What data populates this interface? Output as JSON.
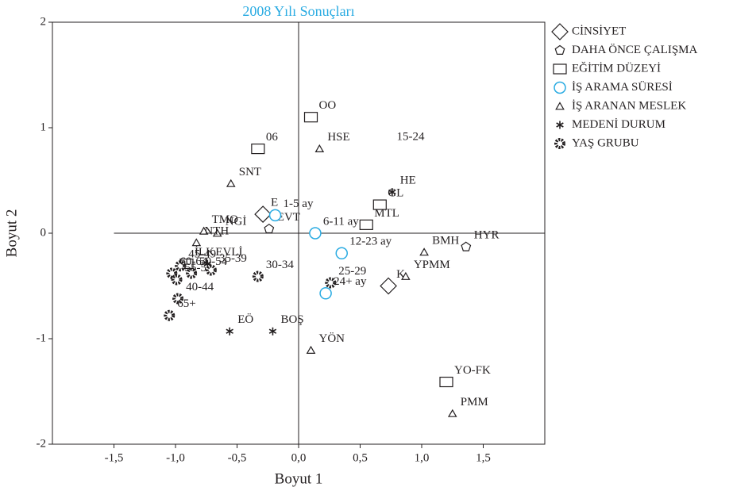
{
  "chart_data": {
    "type": "scatter",
    "title": "2008 Yılı Sonuçları",
    "xlabel": "Boyut 1",
    "ylabel": "Boyut 2",
    "xlim": [
      -2,
      2
    ],
    "ylim": [
      -2,
      2
    ],
    "xticks": [
      {
        "value": -1.5,
        "label": "-1,5"
      },
      {
        "value": -1.0,
        "label": "-1,0"
      },
      {
        "value": -0.5,
        "label": "-0,5"
      },
      {
        "value": 0.0,
        "label": "0,0"
      },
      {
        "value": 0.5,
        "label": "0,5"
      },
      {
        "value": 1.0,
        "label": "1,0"
      },
      {
        "value": 1.5,
        "label": "1,5"
      }
    ],
    "yticks": [
      2,
      1,
      0,
      -1,
      -2
    ],
    "series": [
      {
        "name": "CİNSİYET",
        "marker": "diamond",
        "color": "#231f20",
        "x": [
          -0.29,
          0.73
        ],
        "y": [
          0.18,
          -0.5
        ],
        "labels": [
          "E",
          "K"
        ]
      },
      {
        "name": "DAHA ÖNCE ÇALIŞMA",
        "marker": "pentagon",
        "color": "#231f20",
        "x": [
          -0.24,
          1.36
        ],
        "y": [
          0.04,
          -0.13
        ],
        "labels": [
          "EVT",
          "HYR"
        ]
      },
      {
        "name": "EĞİTİM DÜZEYİ",
        "marker": "square",
        "color": "#231f20",
        "x": [
          0.1,
          -0.33,
          0.66,
          0.55,
          1.2,
          -0.91
        ],
        "y": [
          1.1,
          0.8,
          0.27,
          0.08,
          -1.41,
          -0.29
        ],
        "labels": [
          "OO",
          "06",
          "GL",
          "MTL",
          "YO-FK",
          "İLK"
        ]
      },
      {
        "name": "İŞ ARAMA SÜRESİ",
        "marker": "circle",
        "color": "#29abe2",
        "x": [
          -0.19,
          0.135,
          0.35,
          0.22
        ],
        "y": [
          0.17,
          0.0,
          -0.19,
          -0.57
        ],
        "labels": [
          "1-5 ay",
          "6-11 ay",
          "12-23 ay",
          "24+ ay"
        ]
      },
      {
        "name": "İŞ ARANAN MESLEK",
        "marker": "triangle",
        "color": "#231f20",
        "x": [
          0.17,
          -0.55,
          -0.77,
          -0.66,
          -0.83,
          1.02,
          0.87,
          0.1,
          1.25
        ],
        "y": [
          0.8,
          0.47,
          0.02,
          0.0,
          -0.09,
          -0.18,
          -0.41,
          -1.11,
          -1.71
        ],
        "labels": [
          "HSE",
          "SNT",
          "TMO",
          "NGİ",
          "NTH",
          "BMH",
          "YPMM",
          "YÖN",
          "PMM"
        ]
      },
      {
        "name": "MEDENİ DURUM",
        "marker": "star",
        "color": "#231f20",
        "x": [
          0.76,
          -0.56,
          -0.21,
          -0.74
        ],
        "y": [
          0.39,
          -0.93,
          -0.93,
          -0.29
        ],
        "labels": [
          "HE",
          "EÖ",
          "BOŞ",
          "EVLİ"
        ]
      },
      {
        "name": "YAŞ GRUBU",
        "marker": "gear",
        "color": "#231f20",
        "x": [
          -0.96,
          -1.03,
          -0.99,
          -0.87,
          -0.71,
          -0.98,
          -1.05,
          -0.33,
          0.26
        ],
        "y": [
          -0.31,
          -0.38,
          -0.44,
          -0.38,
          -0.35,
          -0.62,
          -0.78,
          -0.41,
          -0.47
        ],
        "labels": [
          "45-49",
          "60-64",
          "55-59",
          "50-54",
          "35-39",
          "40-44",
          "65+",
          "30-34",
          "25-29"
        ]
      }
    ],
    "annotations": [
      {
        "text": "15-24",
        "x": 0.91,
        "y": 0.91
      }
    ]
  }
}
